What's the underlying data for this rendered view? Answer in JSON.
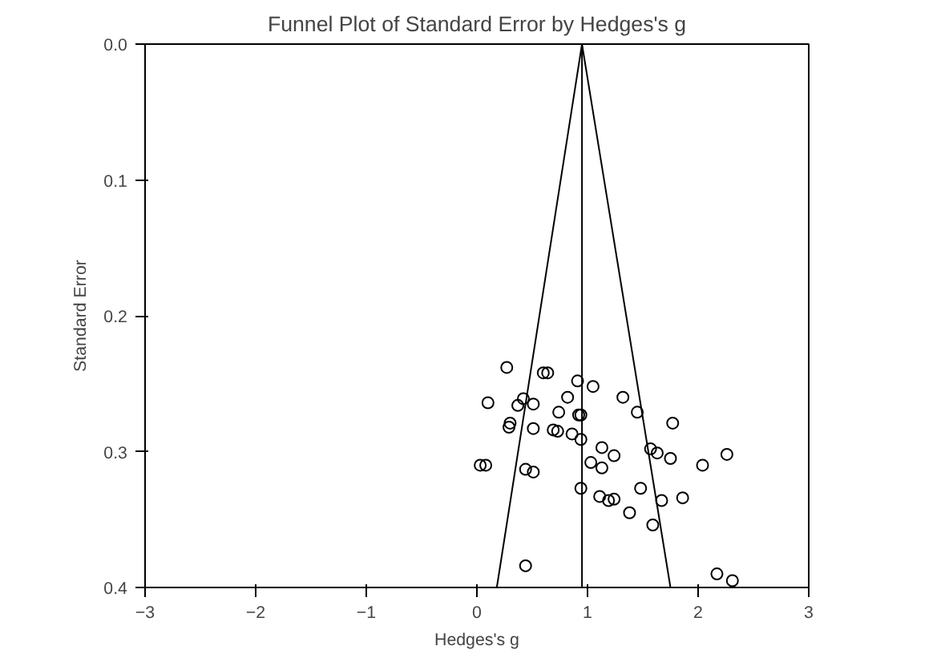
{
  "chart_data": {
    "type": "scatter",
    "title": "Funnel Plot of Standard Error by Hedges's g",
    "xlabel": "Hedges's g",
    "ylabel": "Standard Error",
    "xlim": [
      -3,
      3
    ],
    "xticks": [
      -3,
      -2,
      -1,
      0,
      1,
      2,
      3
    ],
    "ylim": [
      0.4,
      0.0
    ],
    "yticks": [
      {
        "value": 0.0,
        "label": "0.0"
      },
      0.1,
      0.2,
      0.3,
      0.4
    ],
    "grid": false,
    "marker": "circle",
    "series": [
      {
        "color": "#000000",
        "x": [
          0.27,
          0.6,
          0.64,
          0.91,
          1.05,
          0.1,
          1.32,
          0.42,
          0.37,
          0.51,
          0.82,
          1.45,
          0.3,
          0.29,
          0.74,
          0.92,
          0.94,
          0.51,
          0.69,
          0.73,
          0.86,
          0.94,
          1.77,
          1.13,
          1.24,
          1.57,
          1.63,
          1.75,
          2.04,
          2.26,
          0.03,
          0.08,
          0.44,
          0.51,
          1.03,
          1.13,
          0.94,
          1.48,
          1.11,
          1.19,
          1.24,
          1.67,
          1.86,
          1.38,
          1.59,
          0.44,
          2.17,
          2.31
        ],
        "values": [
          0.238,
          0.242,
          0.242,
          0.248,
          0.252,
          0.264,
          0.26,
          0.261,
          0.266,
          0.265,
          0.26,
          0.271,
          0.279,
          0.282,
          0.271,
          0.273,
          0.273,
          0.283,
          0.284,
          0.285,
          0.287,
          0.291,
          0.279,
          0.297,
          0.303,
          0.298,
          0.301,
          0.305,
          0.31,
          0.302,
          0.31,
          0.31,
          0.313,
          0.315,
          0.308,
          0.312,
          0.327,
          0.327,
          0.333,
          0.336,
          0.335,
          0.336,
          0.334,
          0.345,
          0.354,
          0.384,
          0.39,
          0.395
        ]
      },
      {
        "type": "line",
        "color": "#000000",
        "x": [
          0.18,
          0.95,
          1.75
        ],
        "values": [
          0.4,
          0.0,
          0.4
        ],
        "line_style": "solid",
        "marker": "none"
      }
    ],
    "ref_lines": [
      {
        "axis": "x",
        "value": 0.95,
        "color": "#000000",
        "line_style": "solid"
      }
    ]
  }
}
